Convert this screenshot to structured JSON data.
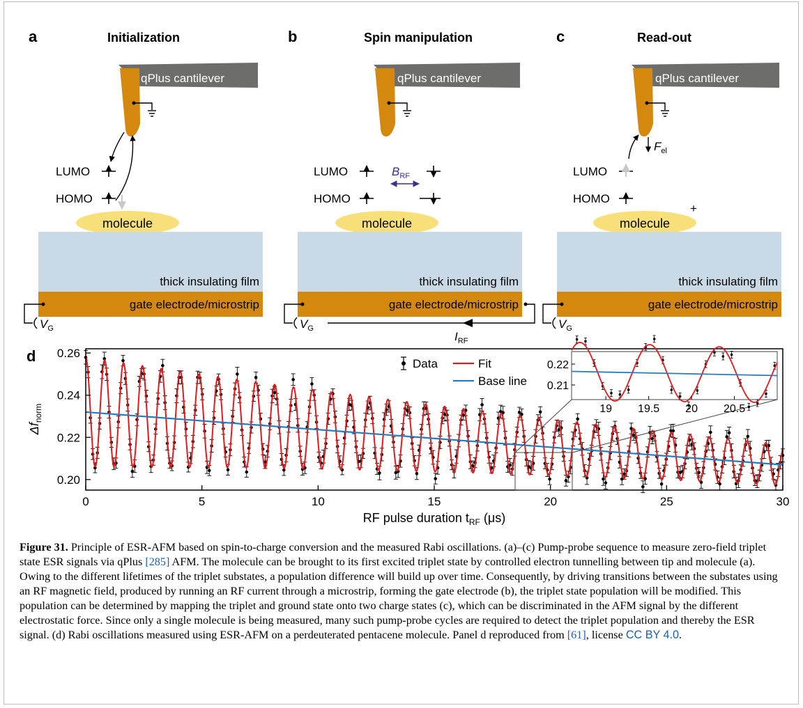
{
  "panels": [
    {
      "letter": "a",
      "title": "Initialization",
      "cantilever": "qPlus cantilever",
      "lumo": "LUMO",
      "homo": "HOMO",
      "molecule": "molecule",
      "film": "thick insulating film",
      "electrode": "gate electrode/microstrip",
      "vg": "V",
      "vg_sub": "G"
    },
    {
      "letter": "b",
      "title": "Spin manipulation",
      "cantilever": "qPlus cantilever",
      "lumo": "LUMO",
      "homo": "HOMO",
      "molecule": "molecule",
      "film": "thick insulating film",
      "electrode": "gate electrode/microstrip",
      "vg": "V",
      "vg_sub": "G",
      "brf": "B",
      "brf_sub": "RF",
      "irf": "I",
      "irf_sub": "RF"
    },
    {
      "letter": "c",
      "title": "Read-out",
      "cantilever": "qPlus cantilever",
      "lumo": "LUMO",
      "homo": "HOMO",
      "molecule": "molecule",
      "film": "thick insulating film",
      "electrode": "gate electrode/microstrip",
      "vg": "V",
      "vg_sub": "G",
      "fel": "F",
      "fel_sub": "el",
      "plus": "+"
    }
  ],
  "colors": {
    "tip": "#d4880e",
    "cantilever": "#6d6e6c",
    "molecule": "#f7e07a",
    "film": "#c9dae6",
    "electrode": "#d4880e",
    "fit": "#e31a1c",
    "baseline": "#2a7ab8",
    "brf_arrow": "#3d2f8c"
  },
  "chart_data": {
    "type": "scatter",
    "panel_letter": "d",
    "xlabel": "RF pulse duration t",
    "xlabel_sub": "RF",
    "xlabel_unit": "(μs)",
    "ylabel": "Δf",
    "ylabel_sub": "norm",
    "xlim": [
      0,
      30
    ],
    "ylim": [
      0.195,
      0.262
    ],
    "xticks": [
      0,
      5,
      10,
      15,
      20,
      25,
      30
    ],
    "yticks": [
      0.2,
      0.22,
      0.24,
      0.26
    ],
    "legend": {
      "data": "Data",
      "fit": "Fit",
      "baseline": "Base line",
      "position": "top-right"
    },
    "series": [
      {
        "name": "Data",
        "kind": "points",
        "x_range": [
          0,
          30
        ],
        "n_points": 300,
        "model": "damped cosine plus linear baseline with scatter"
      },
      {
        "name": "Fit",
        "kind": "line",
        "frequency_per_us": 1.23,
        "amplitude_start": 0.026,
        "decay_tau_us": 30
      },
      {
        "name": "Base line",
        "kind": "line",
        "x": [
          0,
          30
        ],
        "y": [
          0.232,
          0.207
        ]
      }
    ],
    "inset": {
      "xlim": [
        18.6,
        21.0
      ],
      "ylim": [
        0.203,
        0.226
      ],
      "xticks": [
        19,
        19.5,
        20,
        20.5
      ],
      "yticks": [
        0.21,
        0.22
      ]
    }
  },
  "caption": {
    "label": "Figure 31.",
    "t1": " Principle of ESR-AFM based on spin-to-charge conversion and the measured Rabi oscillations. (a)–(c) Pump-probe sequence to measure zero-field triplet state ESR signals via qPlus ",
    "ref1": "[285]",
    "t2": " AFM. The molecule can be brought to its first excited triplet state by controlled electron tunnelling between tip and molecule (a). Owing to the different lifetimes of the triplet substates, a population difference will build up over time. Consequently, by driving transitions between the substates using an RF magnetic field, produced by running an RF current through a microstrip, forming the gate electrode (b), the triplet state population will be modified. This population can be determined by mapping the triplet and ground state onto two charge states (c), which can be discriminated in the AFM signal by the different electrostatic force. Since only a single molecule is being measured, many such pump-probe cycles are required to detect the triplet population and thereby the ESR signal. (d) Rabi oscillations measured using ESR-AFM on a perdeuterated pentacene molecule. Panel d reproduced from ",
    "ref2": "[61]",
    "t3": ", license ",
    "license": "CC BY 4.0",
    "t4": "."
  }
}
